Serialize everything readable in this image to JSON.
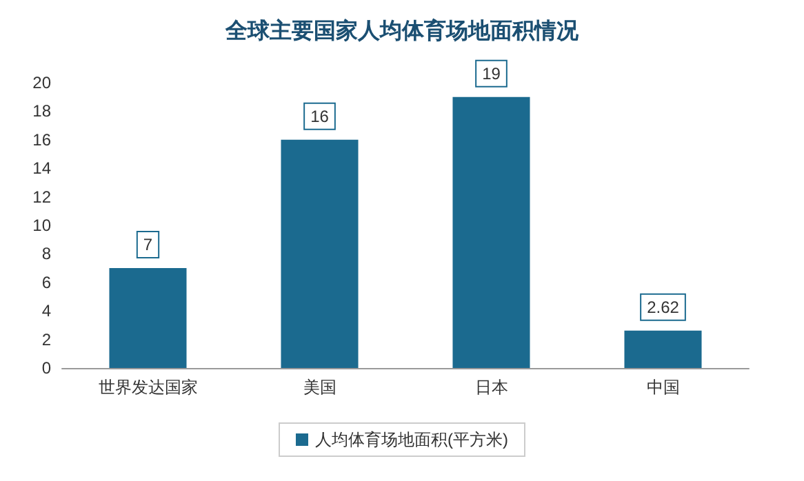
{
  "chart_data": {
    "type": "bar",
    "title": "全球主要国家人均体育场地面积情况",
    "categories": [
      "世界发达国家",
      "美国",
      "日本",
      "中国"
    ],
    "series": [
      {
        "name": "人均体育场地面积(平方米)",
        "color": "#1b6a8f",
        "values": [
          7,
          16,
          19,
          2.62
        ]
      }
    ],
    "ylim": [
      0,
      20
    ],
    "yticks": [
      0,
      2,
      4,
      6,
      8,
      10,
      12,
      14,
      16,
      18,
      20
    ],
    "data_labels": true,
    "legend": "bottom",
    "grid": false
  }
}
